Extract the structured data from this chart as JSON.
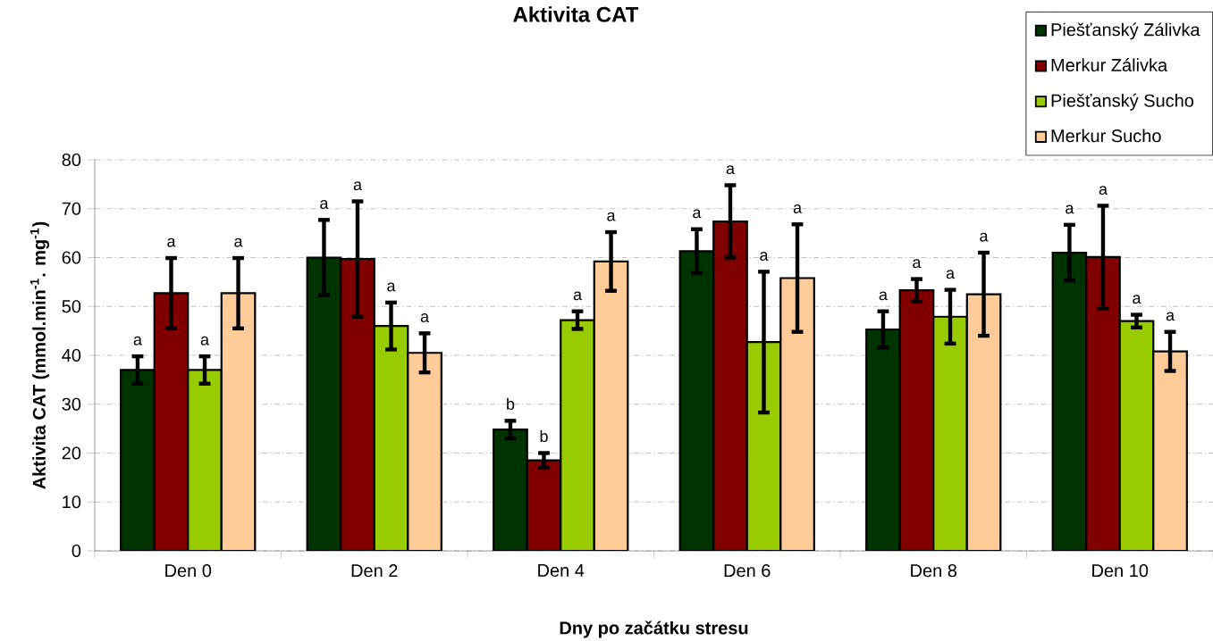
{
  "chart_data": {
    "type": "bar",
    "title": "Aktivita CAT",
    "xlabel": "Dny po začátku stresu",
    "ylabel": "Aktivita CAT (mmol.min$^{-1}$. mg$^{-1}$)",
    "categories": [
      "Den 0",
      "Den 2",
      "Den 4",
      "Den 6",
      "Den 8",
      "Den 10"
    ],
    "series": [
      {
        "name": "Piešťanský Zálivka",
        "color": "#003300",
        "values": [
          37,
          60,
          24.8,
          61.3,
          45.3,
          61
        ],
        "errors": [
          2.8,
          7.7,
          1.8,
          4.5,
          3.7,
          5.7
        ]
      },
      {
        "name": "Merkur Zálivka",
        "color": "#800000",
        "values": [
          52.7,
          59.7,
          18.5,
          67.4,
          53.3,
          60.1
        ],
        "errors": [
          7.2,
          11.8,
          1.5,
          7.4,
          2.3,
          10.5
        ]
      },
      {
        "name": "Piešťanský Sucho",
        "color": "#99cc00",
        "values": [
          37,
          46,
          47.2,
          42.7,
          47.9,
          47
        ],
        "errors": [
          2.8,
          4.8,
          1.8,
          14.4,
          5.5,
          1.3
        ]
      },
      {
        "name": "Merkur Sucho",
        "color": "#ffcc99",
        "values": [
          52.7,
          40.5,
          59.2,
          55.8,
          52.5,
          40.8
        ],
        "errors": [
          7.2,
          4,
          6,
          11,
          8.5,
          4
        ]
      }
    ],
    "ylim": [
      0,
      80
    ],
    "yticks": [
      0,
      10,
      20,
      30,
      40,
      50,
      60,
      70,
      80
    ],
    "grid": "y",
    "legend": "top right",
    "annotations": [
      "a",
      "a",
      "a",
      "a",
      "a",
      "a",
      "a",
      "a",
      "b",
      "b",
      "a",
      "a",
      "a",
      "a",
      "a",
      "a",
      "a",
      "a",
      "a",
      "a",
      "a",
      "a",
      "a",
      "a"
    ]
  }
}
